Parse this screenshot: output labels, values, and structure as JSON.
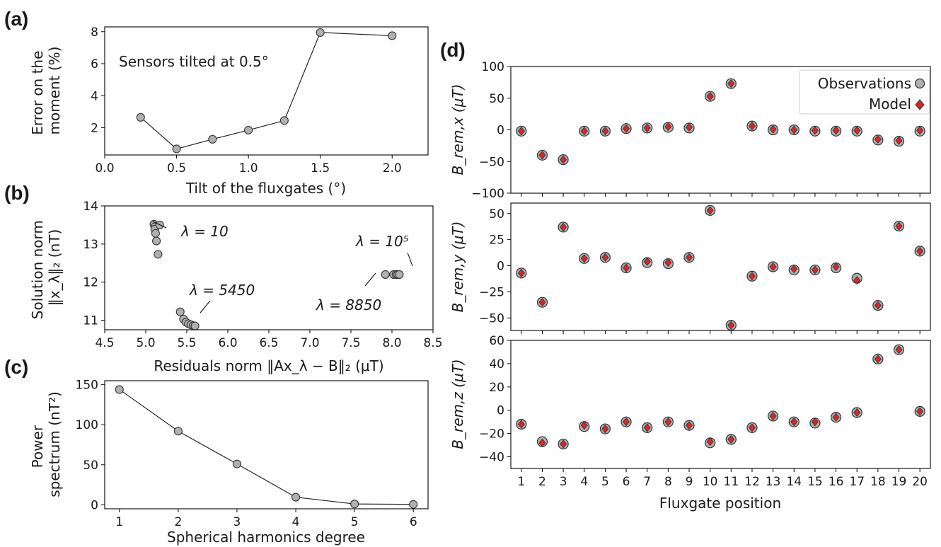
{
  "panel_labels": {
    "a": "(a)",
    "b": "(b)",
    "c": "(c)",
    "d": "(d)"
  },
  "chart_data": [
    {
      "id": "a",
      "type": "line",
      "xlabel": "Tilt of the fluxgates (°)",
      "ylabel_lines": [
        "Error on the",
        "moment (%)"
      ],
      "xlim": [
        0.0,
        2.25
      ],
      "ylim": [
        0.3,
        8.3
      ],
      "xticks": [
        0.0,
        0.5,
        1.0,
        1.5,
        2.0
      ],
      "xtick_labels": [
        "0.0",
        "0.5",
        "1.0",
        "1.5",
        "2.0"
      ],
      "yticks": [
        2,
        4,
        6,
        8
      ],
      "ytick_labels": [
        "2",
        "4",
        "6",
        "8"
      ],
      "x": [
        0.25,
        0.5,
        0.75,
        1.0,
        1.25,
        1.5,
        2.0
      ],
      "y": [
        2.65,
        0.68,
        1.28,
        1.85,
        2.45,
        7.95,
        7.75
      ],
      "annotation": "Sensors tilted at 0.5°"
    },
    {
      "id": "b",
      "type": "scatter",
      "xlabel": "Residuals norm ‖Ax_λ − B‖₂ (μT)",
      "ylabel_lines": [
        "Solution norm",
        "‖x_λ‖₂ (nT)"
      ],
      "xlim": [
        4.5,
        8.5
      ],
      "ylim": [
        10.75,
        14.0
      ],
      "xticks": [
        4.5,
        5.0,
        5.5,
        6.0,
        6.5,
        7.0,
        7.5,
        8.0,
        8.5
      ],
      "xtick_labels": [
        "4.5",
        "5.0",
        "5.5",
        "6.0",
        "6.5",
        "7.0",
        "7.5",
        "8.0",
        "8.5"
      ],
      "yticks": [
        11,
        12,
        13,
        14
      ],
      "ytick_labels": [
        "11",
        "12",
        "13",
        "14"
      ],
      "x": [
        5.1,
        5.11,
        5.11,
        5.12,
        5.13,
        5.15,
        5.17,
        5.42,
        5.46,
        5.49,
        5.52,
        5.55,
        5.58,
        5.6,
        7.92,
        8.02,
        8.05,
        8.07,
        8.09
      ],
      "y": [
        13.52,
        13.45,
        13.39,
        13.28,
        13.08,
        12.73,
        13.5,
        11.22,
        11.03,
        10.95,
        10.91,
        10.88,
        10.86,
        10.85,
        12.2,
        12.2,
        12.2,
        12.2,
        12.2
      ],
      "annotations": [
        {
          "text": "λ = 10"
        },
        {
          "text": "λ = 5450"
        },
        {
          "text": "λ = 10⁵"
        },
        {
          "text": "λ = 8850"
        }
      ]
    },
    {
      "id": "c",
      "type": "line",
      "xlabel": "Spherical harmonics degree",
      "ylabel_lines": [
        "Power",
        "spectrum (nT²)"
      ],
      "xlim": [
        0.75,
        6.25
      ],
      "ylim": [
        -5,
        155
      ],
      "xticks": [
        1,
        2,
        3,
        4,
        5,
        6
      ],
      "xtick_labels": [
        "1",
        "2",
        "3",
        "4",
        "5",
        "6"
      ],
      "yticks": [
        0,
        50,
        100,
        150
      ],
      "ytick_labels": [
        "0",
        "50",
        "100",
        "150"
      ],
      "x": [
        1,
        2,
        3,
        4,
        5,
        6
      ],
      "y": [
        144,
        92,
        51,
        9.5,
        1.0,
        0.5
      ]
    },
    {
      "id": "d",
      "type": "scatter",
      "xlabel": "Fluxgate position",
      "categories": [
        "1",
        "2",
        "3",
        "4",
        "5",
        "6",
        "7",
        "8",
        "9",
        "10",
        "11",
        "12",
        "13",
        "14",
        "15",
        "16",
        "17",
        "18",
        "19",
        "20"
      ],
      "legend": {
        "placement": "top-right",
        "entries": [
          "Observations",
          "Model"
        ]
      },
      "colors": {
        "observation_fill": "#b0b0b0",
        "model_fill": "#d62728"
      },
      "subplots": [
        {
          "ylabel": "B_rem,x (μT)",
          "ylim": [
            -100,
            100
          ],
          "yticks": [
            -100,
            -50,
            0,
            50,
            100
          ],
          "ytick_labels": [
            "−100",
            "−50",
            "0",
            "50",
            "100"
          ],
          "series": [
            {
              "name": "Observations",
              "values": [
                -2,
                -40,
                -47,
                -2,
                -2,
                2,
                3,
                4,
                3,
                53,
                73,
                6,
                0,
                0,
                -2,
                -2,
                -2,
                -16,
                -18,
                -2
              ]
            },
            {
              "name": "Model",
              "values": [
                -2,
                -40,
                -47,
                -2,
                -2,
                2,
                3,
                5,
                4,
                53,
                73,
                6,
                1,
                0,
                -1,
                -1,
                -1,
                -15,
                -17,
                -1
              ]
            }
          ]
        },
        {
          "ylabel": "B_rem,y (μT)",
          "ylim": [
            -62,
            60
          ],
          "yticks": [
            -50,
            -25,
            0,
            25,
            50
          ],
          "ytick_labels": [
            "−50",
            "−25",
            "0",
            "25",
            "50"
          ],
          "series": [
            {
              "name": "Observations",
              "values": [
                -7,
                -35,
                37,
                7,
                8,
                -2,
                3,
                2,
                8,
                53,
                -57,
                -10,
                -1,
                -4,
                -4,
                -2,
                -12,
                -38,
                38,
                14
              ]
            },
            {
              "name": "Model",
              "values": [
                -7,
                -35,
                37,
                7,
                8,
                -2,
                4,
                3,
                8,
                53,
                -57,
                -10,
                -1,
                -3,
                -4,
                -1,
                -14,
                -38,
                38,
                14
              ]
            }
          ]
        },
        {
          "ylabel": "B_rem,z (μT)",
          "ylim": [
            -50,
            60
          ],
          "yticks": [
            -40,
            -20,
            0,
            20,
            40,
            60
          ],
          "ytick_labels": [
            "−40",
            "−20",
            "0",
            "20",
            "40",
            "60"
          ],
          "series": [
            {
              "name": "Observations",
              "values": [
                -12,
                -27,
                -29,
                -14,
                -16,
                -10,
                -15,
                -10,
                -13,
                -28,
                -25,
                -15,
                -5,
                -10,
                -11,
                -6,
                -2,
                44,
                52,
                -1
              ]
            },
            {
              "name": "Model",
              "values": [
                -12,
                -28,
                -29,
                -13,
                -16,
                -10,
                -15,
                -10,
                -13,
                -27,
                -25,
                -15,
                -5,
                -10,
                -10,
                -6,
                -2,
                44,
                52,
                -1
              ]
            }
          ]
        }
      ]
    }
  ]
}
